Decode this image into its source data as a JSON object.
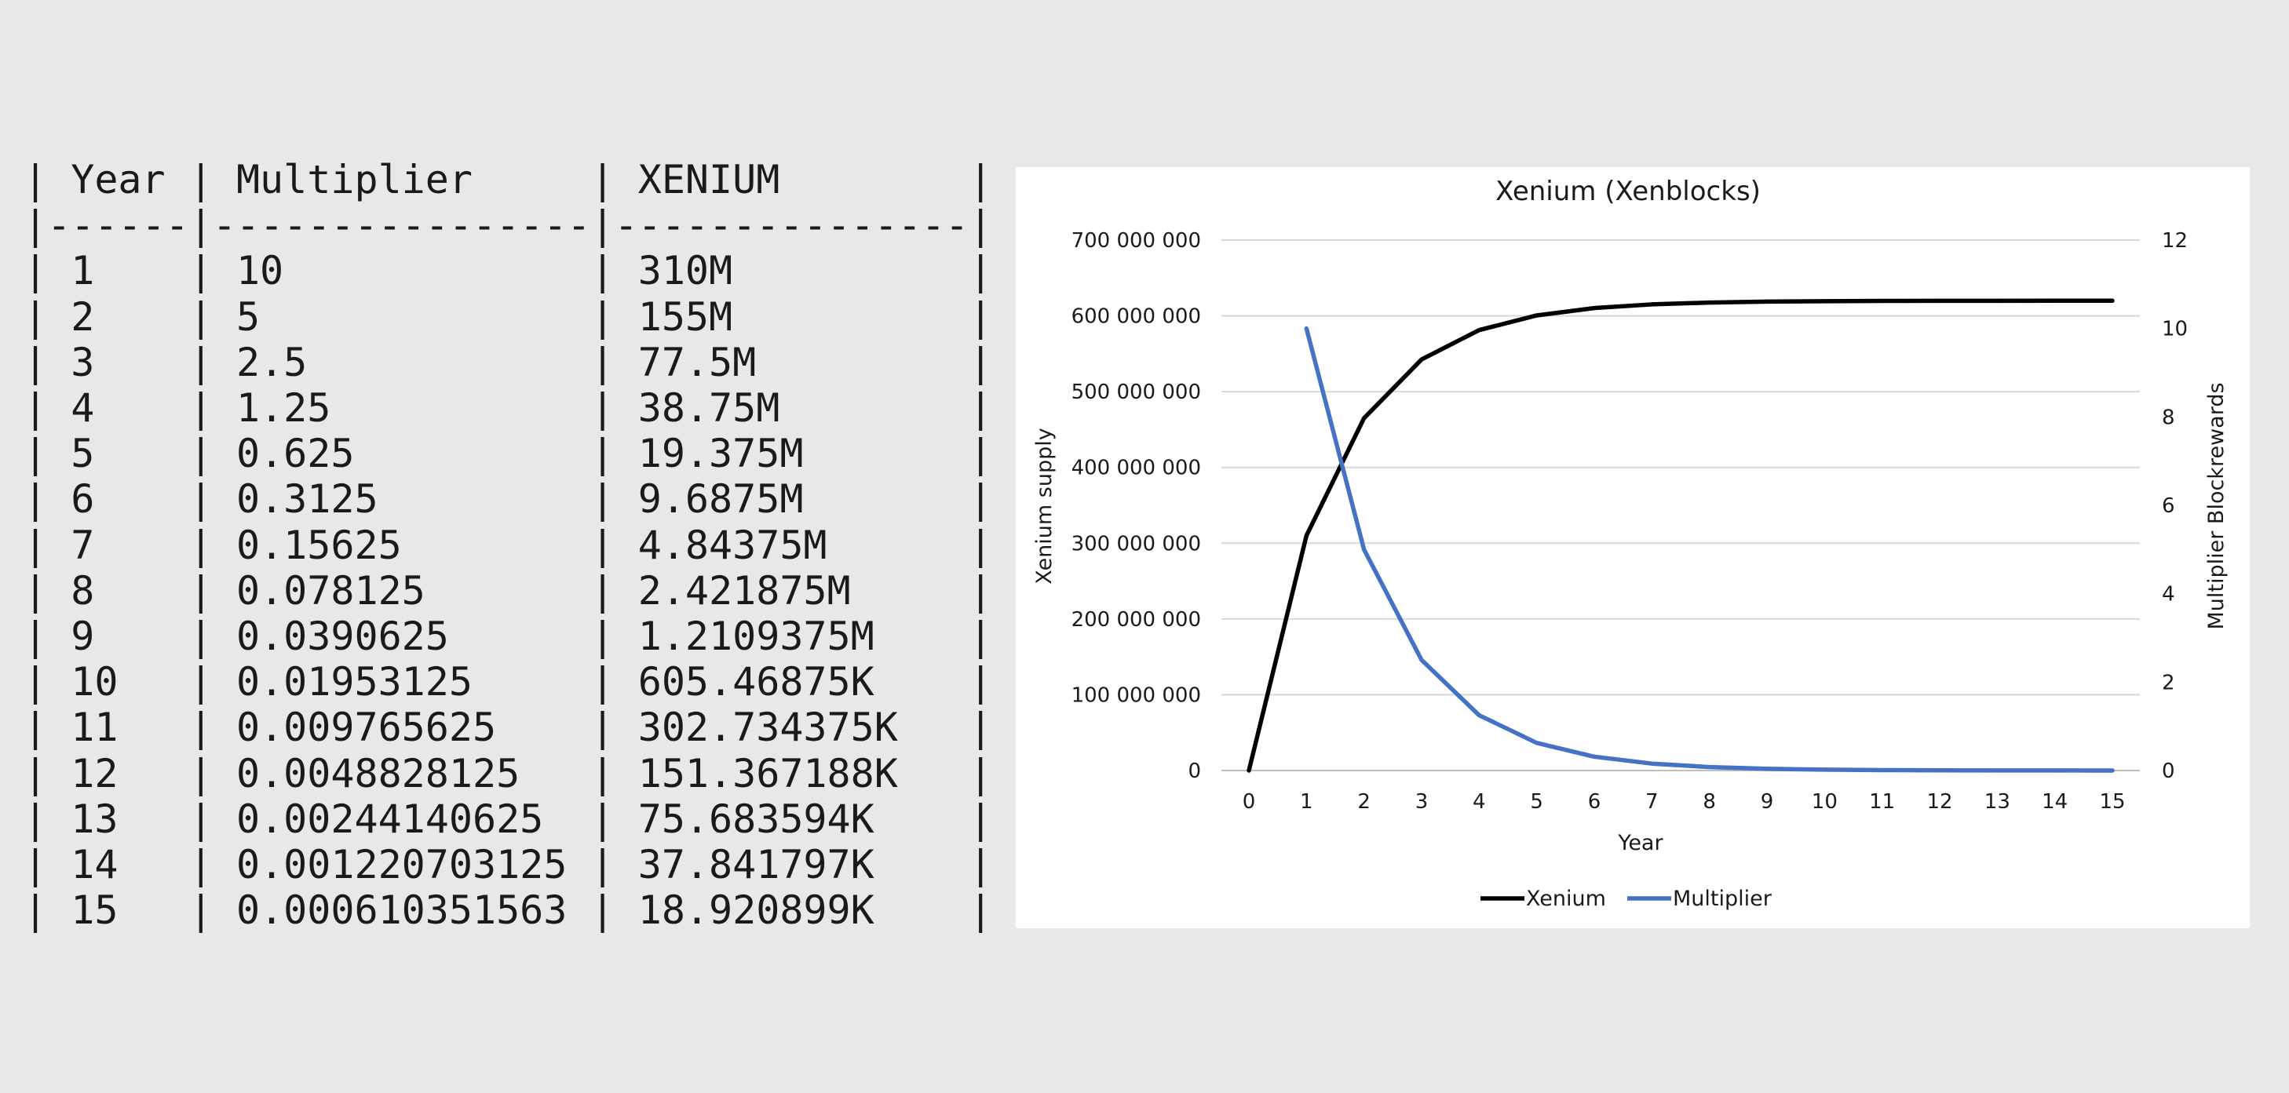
{
  "table": {
    "columns": [
      "Year",
      "Multiplier",
      "XENIUM"
    ],
    "widths": [
      6,
      16,
      15
    ],
    "rows": [
      [
        "1",
        "10",
        "310M"
      ],
      [
        "2",
        "5",
        "155M"
      ],
      [
        "3",
        "2.5",
        "77.5M"
      ],
      [
        "4",
        "1.25",
        "38.75M"
      ],
      [
        "5",
        "0.625",
        "19.375M"
      ],
      [
        "6",
        "0.3125",
        "9.6875M"
      ],
      [
        "7",
        "0.15625",
        "4.84375M"
      ],
      [
        "8",
        "0.078125",
        "2.421875M"
      ],
      [
        "9",
        "0.0390625",
        "1.2109375M"
      ],
      [
        "10",
        "0.01953125",
        "605.46875K"
      ],
      [
        "11",
        "0.009765625",
        "302.734375K"
      ],
      [
        "12",
        "0.0048828125",
        "151.367188K"
      ],
      [
        "13",
        "0.00244140625",
        "75.683594K"
      ],
      [
        "14",
        "0.001220703125",
        "37.841797K"
      ],
      [
        "15",
        "0.000610351563",
        "18.920899K"
      ]
    ]
  },
  "chart_data": {
    "type": "line",
    "title": "Xenium (Xenblocks)",
    "xlabel": "Year",
    "ylabel": "Xenium supply",
    "y2label": "Multiplier Blockrewards",
    "x": [
      0,
      1,
      2,
      3,
      4,
      5,
      6,
      7,
      8,
      9,
      10,
      11,
      12,
      13,
      14,
      15
    ],
    "ylim": [
      0,
      700000000
    ],
    "y2lim": [
      0,
      12
    ],
    "yticks": [
      "0",
      "100 000 000",
      "200 000 000",
      "300 000 000",
      "400 000 000",
      "500 000 000",
      "600 000 000",
      "700 000 000"
    ],
    "y2ticks": [
      "0",
      "2",
      "4",
      "6",
      "8",
      "10",
      "12"
    ],
    "grid": true,
    "legend_position": "bottom",
    "series": [
      {
        "name": "Xenium",
        "axis": "left",
        "color": "#000000",
        "x": [
          0,
          1,
          2,
          3,
          4,
          5,
          6,
          7,
          8,
          9,
          10,
          11,
          12,
          13,
          14,
          15
        ],
        "values": [
          0,
          310000000,
          465000000,
          542500000,
          581250000,
          600625000,
          610312500,
          615156250,
          617578125,
          618789062,
          619394531,
          619697266,
          619848633,
          619924316,
          619962158,
          619981079
        ]
      },
      {
        "name": "Multiplier",
        "axis": "right",
        "color": "#4472c4",
        "x": [
          1,
          2,
          3,
          4,
          5,
          6,
          7,
          8,
          9,
          10,
          11,
          12,
          13,
          14,
          15
        ],
        "values": [
          10,
          5,
          2.5,
          1.25,
          0.625,
          0.3125,
          0.15625,
          0.078125,
          0.0390625,
          0.01953125,
          0.009765625,
          0.0048828125,
          0.00244140625,
          0.001220703125,
          0.000610351563
        ]
      }
    ]
  }
}
